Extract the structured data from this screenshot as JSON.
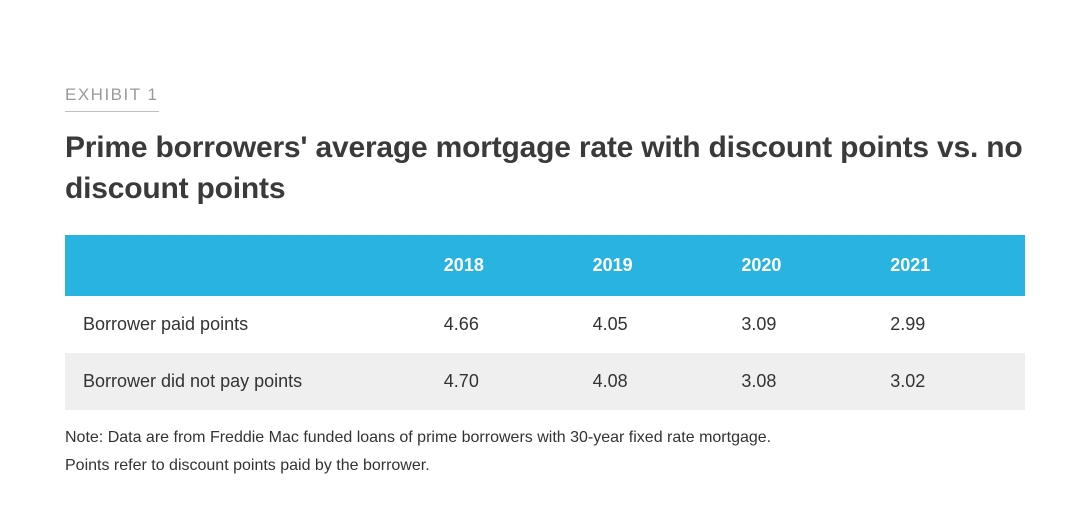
{
  "exhibit": {
    "label": "EXHIBIT 1",
    "title": "Prime borrowers' average mortgage rate with discount points vs. no discount points"
  },
  "table": {
    "type": "table",
    "header_bg_color": "#29b3e0",
    "header_text_color": "#ffffff",
    "row_colors": [
      "#ffffff",
      "#efefef"
    ],
    "body_text_color": "#333333",
    "columns": [
      "",
      "2018",
      "2019",
      "2020",
      "2021"
    ],
    "rows": [
      [
        "Borrower paid points",
        "4.66",
        "4.05",
        "3.09",
        "2.99"
      ],
      [
        "Borrower did not pay points",
        "4.70",
        "4.08",
        "3.08",
        "3.02"
      ]
    ],
    "font_size_header": 18,
    "font_size_body": 18,
    "col0_width_pct": 38,
    "colN_width_pct": 15.5
  },
  "note": {
    "line1": "Note: Data are from Freddie Mac funded loans of prime borrowers with 30-year fixed rate mortgage.",
    "line2": "Points refer to discount points paid by the borrower."
  },
  "styling": {
    "background_color": "#ffffff",
    "label_color": "#9a9a9a",
    "label_underline_color": "#c0c0c0",
    "title_color": "#3a3a3a",
    "note_color": "#333333",
    "title_fontsize": 30,
    "label_fontsize": 17,
    "note_fontsize": 16
  }
}
